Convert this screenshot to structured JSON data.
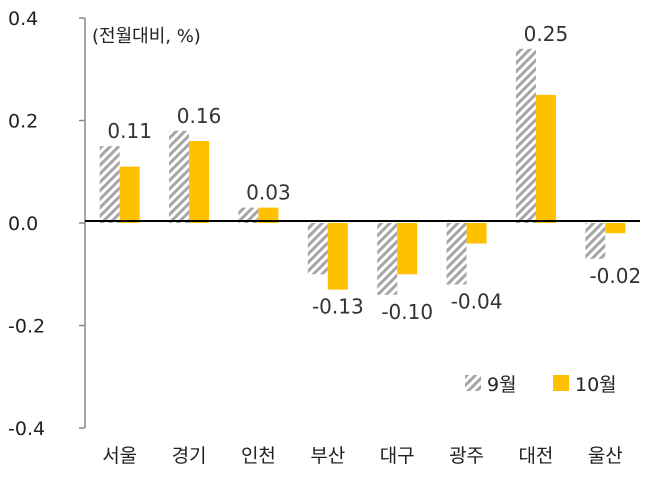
{
  "chart_data": {
    "type": "bar",
    "unit_label": "(전월대비, %)",
    "categories": [
      "서울",
      "경기",
      "인천",
      "부산",
      "대구",
      "광주",
      "대전",
      "울산"
    ],
    "series": [
      {
        "name": "9월",
        "values": [
          0.15,
          0.18,
          0.03,
          -0.1,
          -0.14,
          -0.12,
          0.34,
          -0.07
        ],
        "color": "#a6a6a6",
        "pattern": "diagonal-hatch"
      },
      {
        "name": "10월",
        "values": [
          0.11,
          0.16,
          0.03,
          -0.13,
          -0.1,
          -0.04,
          0.25,
          -0.02
        ],
        "color": "#ffc000",
        "pattern": "solid"
      }
    ],
    "data_labels": [
      "0.11",
      "0.16",
      "0.03",
      "-0.13",
      "-0.10",
      "-0.04",
      "0.25",
      "-0.02"
    ],
    "y_ticks": [
      "0.4",
      "0.2",
      "0.0",
      "-0.2",
      "-0.4"
    ],
    "y_tick_values": [
      0.4,
      0.2,
      0.0,
      -0.2,
      -0.4
    ],
    "ylim": [
      -0.4,
      0.4
    ],
    "grid": false,
    "legend_position": "bottom-right"
  }
}
